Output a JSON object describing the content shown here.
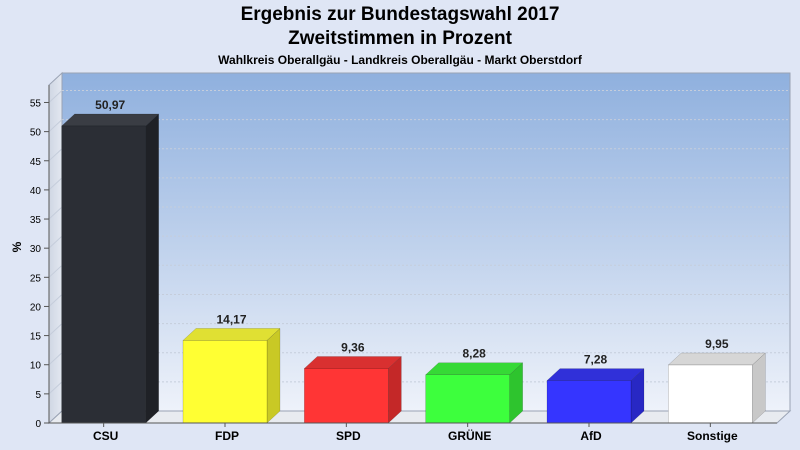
{
  "header": {
    "title": "Ergebnis zur Bundestagswahl 2017",
    "subtitle": "Zweitstimmen in Prozent",
    "caption": "Wahlkreis Oberallgäu - Landkreis Oberallgäu - Markt Oberstdorf"
  },
  "chart_data": {
    "type": "bar",
    "title": "Ergebnis zur Bundestagswahl 2017",
    "subtitle": "Zweitstimmen in Prozent",
    "ylabel": "%",
    "ylim": [
      0,
      58
    ],
    "yticks": [
      0,
      5,
      10,
      15,
      20,
      25,
      30,
      35,
      40,
      45,
      50,
      55
    ],
    "grid": true,
    "categories": [
      "CSU",
      "FDP",
      "SPD",
      "GRÜNE",
      "AfD",
      "Sonstige"
    ],
    "values": [
      50.97,
      14.17,
      9.36,
      8.28,
      7.28,
      9.95
    ],
    "value_labels": [
      "50,97",
      "14,17",
      "9,36",
      "8,28",
      "7,28",
      "9,95"
    ],
    "colors": [
      "#2b2e35",
      "#ffff33",
      "#ff3535",
      "#3dff3d",
      "#3535ff",
      "#ffffff"
    ],
    "side_colors": [
      "#1f2126",
      "#c9c925",
      "#c42828",
      "#2ec42e",
      "#2828c4",
      "#c8c8c8"
    ],
    "top_colors": [
      "#3a3d44",
      "#e0e033",
      "#d93030",
      "#36d936",
      "#3030d9",
      "#d6d6d6"
    ]
  }
}
